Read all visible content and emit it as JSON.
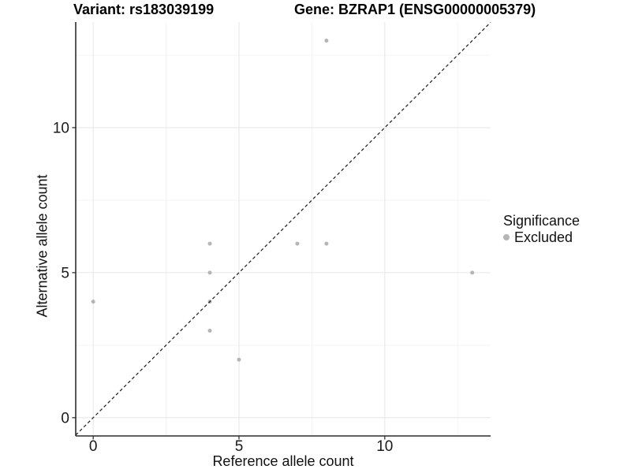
{
  "header": {
    "variant_title": "Variant: rs183039199",
    "gene_title": "Gene: BZRAP1 (ENSG00000005379)"
  },
  "chart_data": {
    "type": "scatter",
    "title": "",
    "xlabel": "Reference allele count",
    "ylabel": "Alternative allele count",
    "xlim": [
      -0.6,
      13.63
    ],
    "ylim": [
      -0.63,
      13.64
    ],
    "x_ticks": [
      {
        "value": 0,
        "label": "0"
      },
      {
        "value": 5,
        "label": "5"
      },
      {
        "value": 10,
        "label": "10"
      }
    ],
    "y_ticks": [
      {
        "value": 0,
        "label": "0"
      },
      {
        "value": 5,
        "label": "5"
      },
      {
        "value": 10,
        "label": "10"
      }
    ],
    "x_minor_ticks": [
      2.5,
      7.5,
      12.5
    ],
    "y_minor_ticks": [
      2.5,
      7.5,
      12.5
    ],
    "grid": {
      "major": true,
      "minor": true
    },
    "series": [
      {
        "name": "Excluded",
        "color": "#b5b5b5",
        "points": [
          {
            "x": 0,
            "y": 4
          },
          {
            "x": 4,
            "y": 3
          },
          {
            "x": 4,
            "y": 4
          },
          {
            "x": 4,
            "y": 5
          },
          {
            "x": 4,
            "y": 6
          },
          {
            "x": 5,
            "y": 2
          },
          {
            "x": 7,
            "y": 6
          },
          {
            "x": 8,
            "y": 6
          },
          {
            "x": 8,
            "y": 13
          },
          {
            "x": 13,
            "y": 5
          }
        ]
      }
    ],
    "reference_line": {
      "equation": "y = x",
      "style": "dashed",
      "color": "#1a1a1a"
    },
    "legend": {
      "title": "Significance",
      "position": "right",
      "items": [
        {
          "label": "Excluded",
          "color": "#b5b5b5"
        }
      ]
    },
    "colors": {
      "background": "#ffffff",
      "grid_major": "#e8e8e8",
      "grid_minor": "#f4f4f4",
      "axis_line": "#2b2b2b",
      "tick_mark": "#333333",
      "tick_label": "#1a1a1a",
      "point": "#b5b5b5"
    }
  }
}
